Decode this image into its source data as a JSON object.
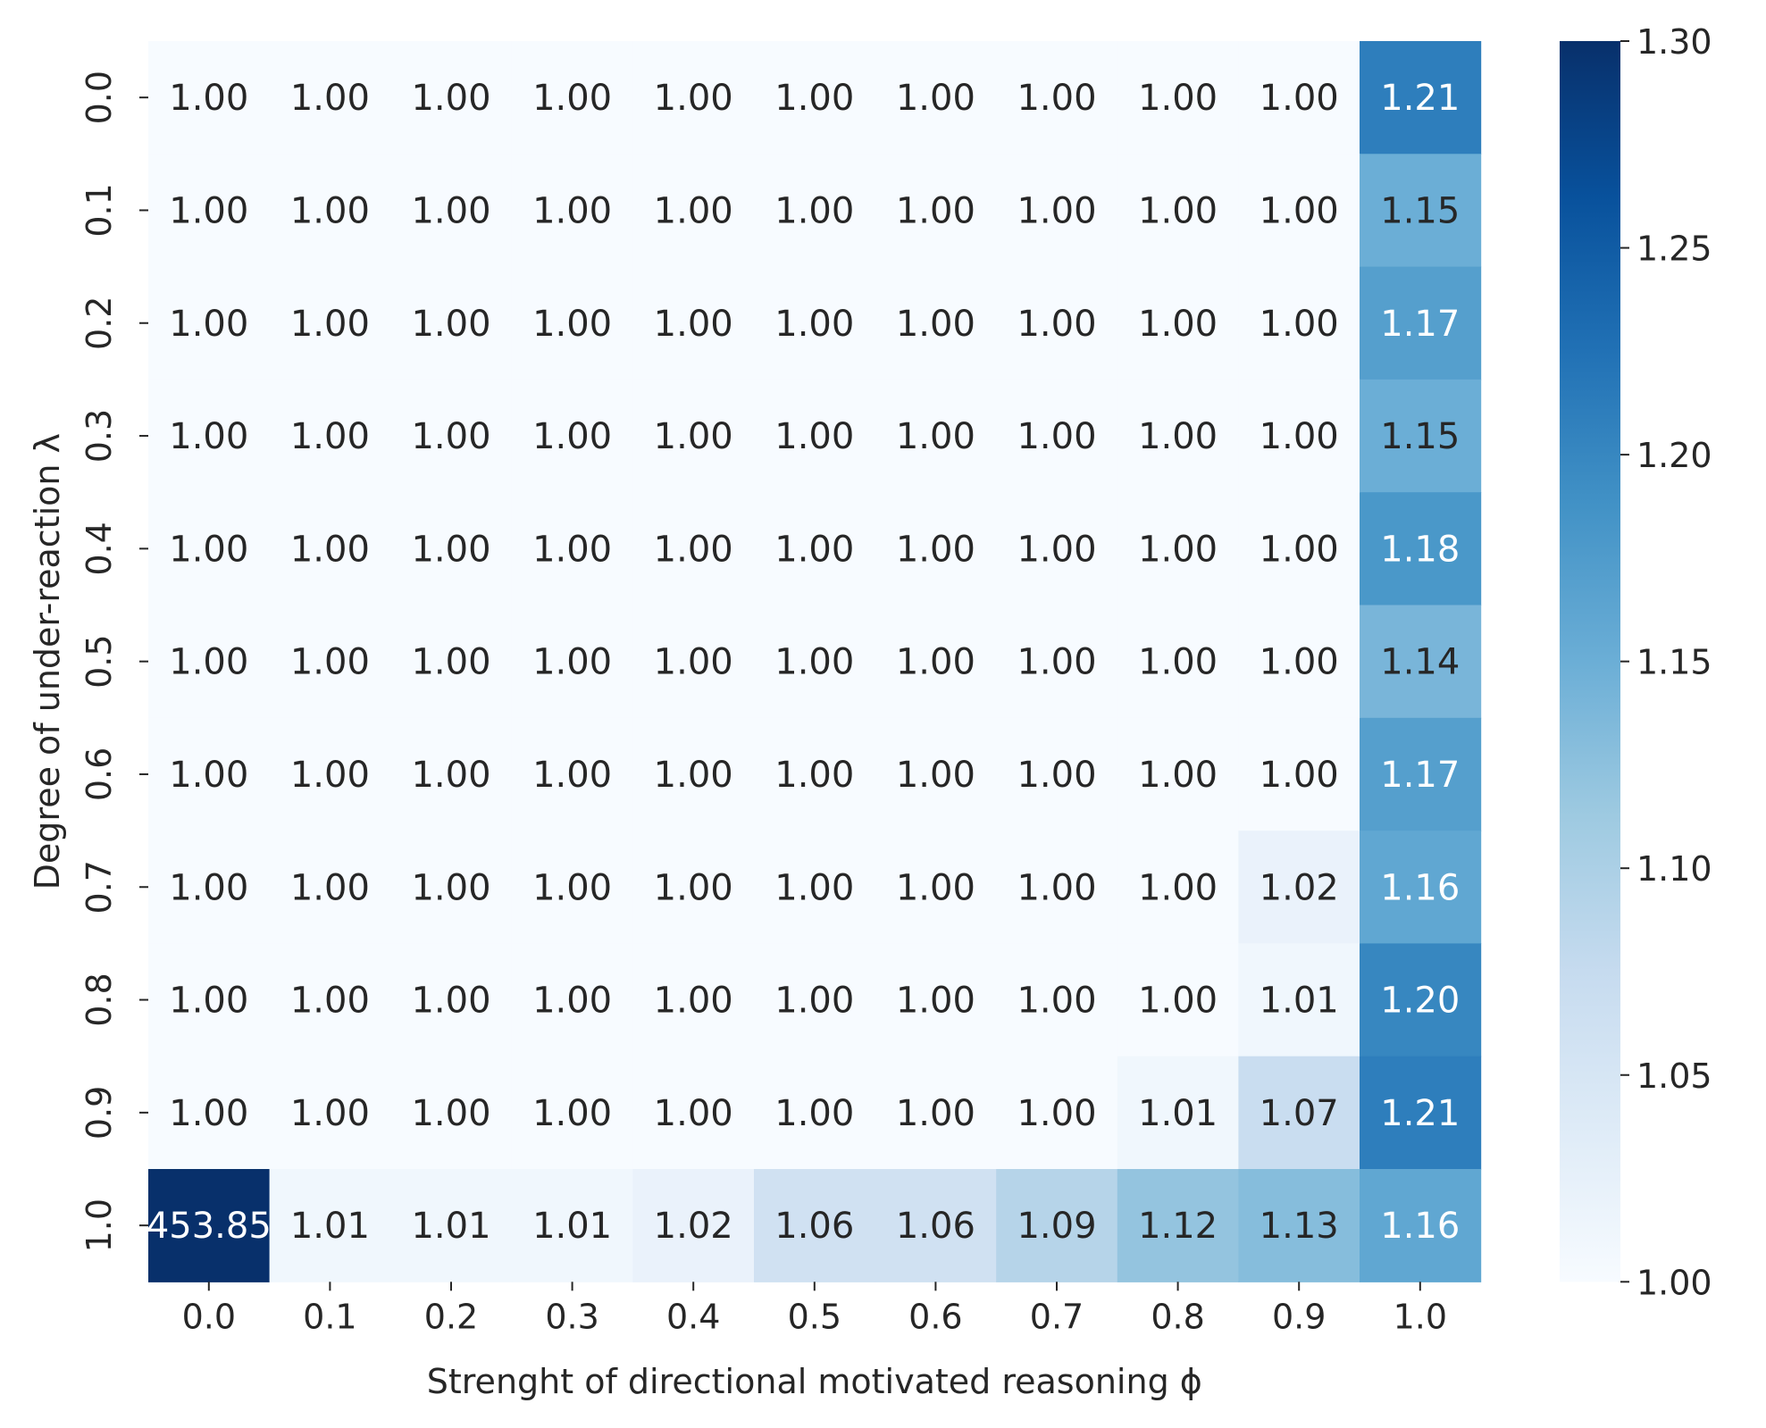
{
  "chart_data": {
    "type": "heatmap",
    "xlabel": "Strenght of directional motivated reasoning ϕ",
    "ylabel": "Degree of under-reaction λ",
    "x_categories": [
      "0.0",
      "0.1",
      "0.2",
      "0.3",
      "0.4",
      "0.5",
      "0.6",
      "0.7",
      "0.8",
      "0.9",
      "1.0"
    ],
    "y_categories": [
      "0.0",
      "0.1",
      "0.2",
      "0.3",
      "0.4",
      "0.5",
      "0.6",
      "0.7",
      "0.8",
      "0.9",
      "1.0"
    ],
    "values": [
      [
        1.0,
        1.0,
        1.0,
        1.0,
        1.0,
        1.0,
        1.0,
        1.0,
        1.0,
        1.0,
        1.21
      ],
      [
        1.0,
        1.0,
        1.0,
        1.0,
        1.0,
        1.0,
        1.0,
        1.0,
        1.0,
        1.0,
        1.15
      ],
      [
        1.0,
        1.0,
        1.0,
        1.0,
        1.0,
        1.0,
        1.0,
        1.0,
        1.0,
        1.0,
        1.17
      ],
      [
        1.0,
        1.0,
        1.0,
        1.0,
        1.0,
        1.0,
        1.0,
        1.0,
        1.0,
        1.0,
        1.15
      ],
      [
        1.0,
        1.0,
        1.0,
        1.0,
        1.0,
        1.0,
        1.0,
        1.0,
        1.0,
        1.0,
        1.18
      ],
      [
        1.0,
        1.0,
        1.0,
        1.0,
        1.0,
        1.0,
        1.0,
        1.0,
        1.0,
        1.0,
        1.14
      ],
      [
        1.0,
        1.0,
        1.0,
        1.0,
        1.0,
        1.0,
        1.0,
        1.0,
        1.0,
        1.0,
        1.17
      ],
      [
        1.0,
        1.0,
        1.0,
        1.0,
        1.0,
        1.0,
        1.0,
        1.0,
        1.0,
        1.02,
        1.16
      ],
      [
        1.0,
        1.0,
        1.0,
        1.0,
        1.0,
        1.0,
        1.0,
        1.0,
        1.0,
        1.01,
        1.2
      ],
      [
        1.0,
        1.0,
        1.0,
        1.0,
        1.0,
        1.0,
        1.0,
        1.0,
        1.01,
        1.07,
        1.21
      ],
      [
        453.85,
        1.01,
        1.01,
        1.01,
        1.02,
        1.06,
        1.06,
        1.09,
        1.12,
        1.13,
        1.16
      ]
    ],
    "value_format": "2 decimals",
    "color_scale": {
      "name": "Blues",
      "vmin": 1.0,
      "vmax": 1.3,
      "ticks": [
        "1.00",
        "1.05",
        "1.10",
        "1.15",
        "1.20",
        "1.25",
        "1.30"
      ],
      "stops": [
        "#f7fbff",
        "#deebf7",
        "#c6dbef",
        "#9ecae1",
        "#6baed6",
        "#4292c6",
        "#2171b5",
        "#08519c",
        "#08306b"
      ]
    },
    "annotation_colors": {
      "dark": "#262626",
      "light": "#ffffff"
    },
    "grid": false,
    "colorbar": "right"
  }
}
